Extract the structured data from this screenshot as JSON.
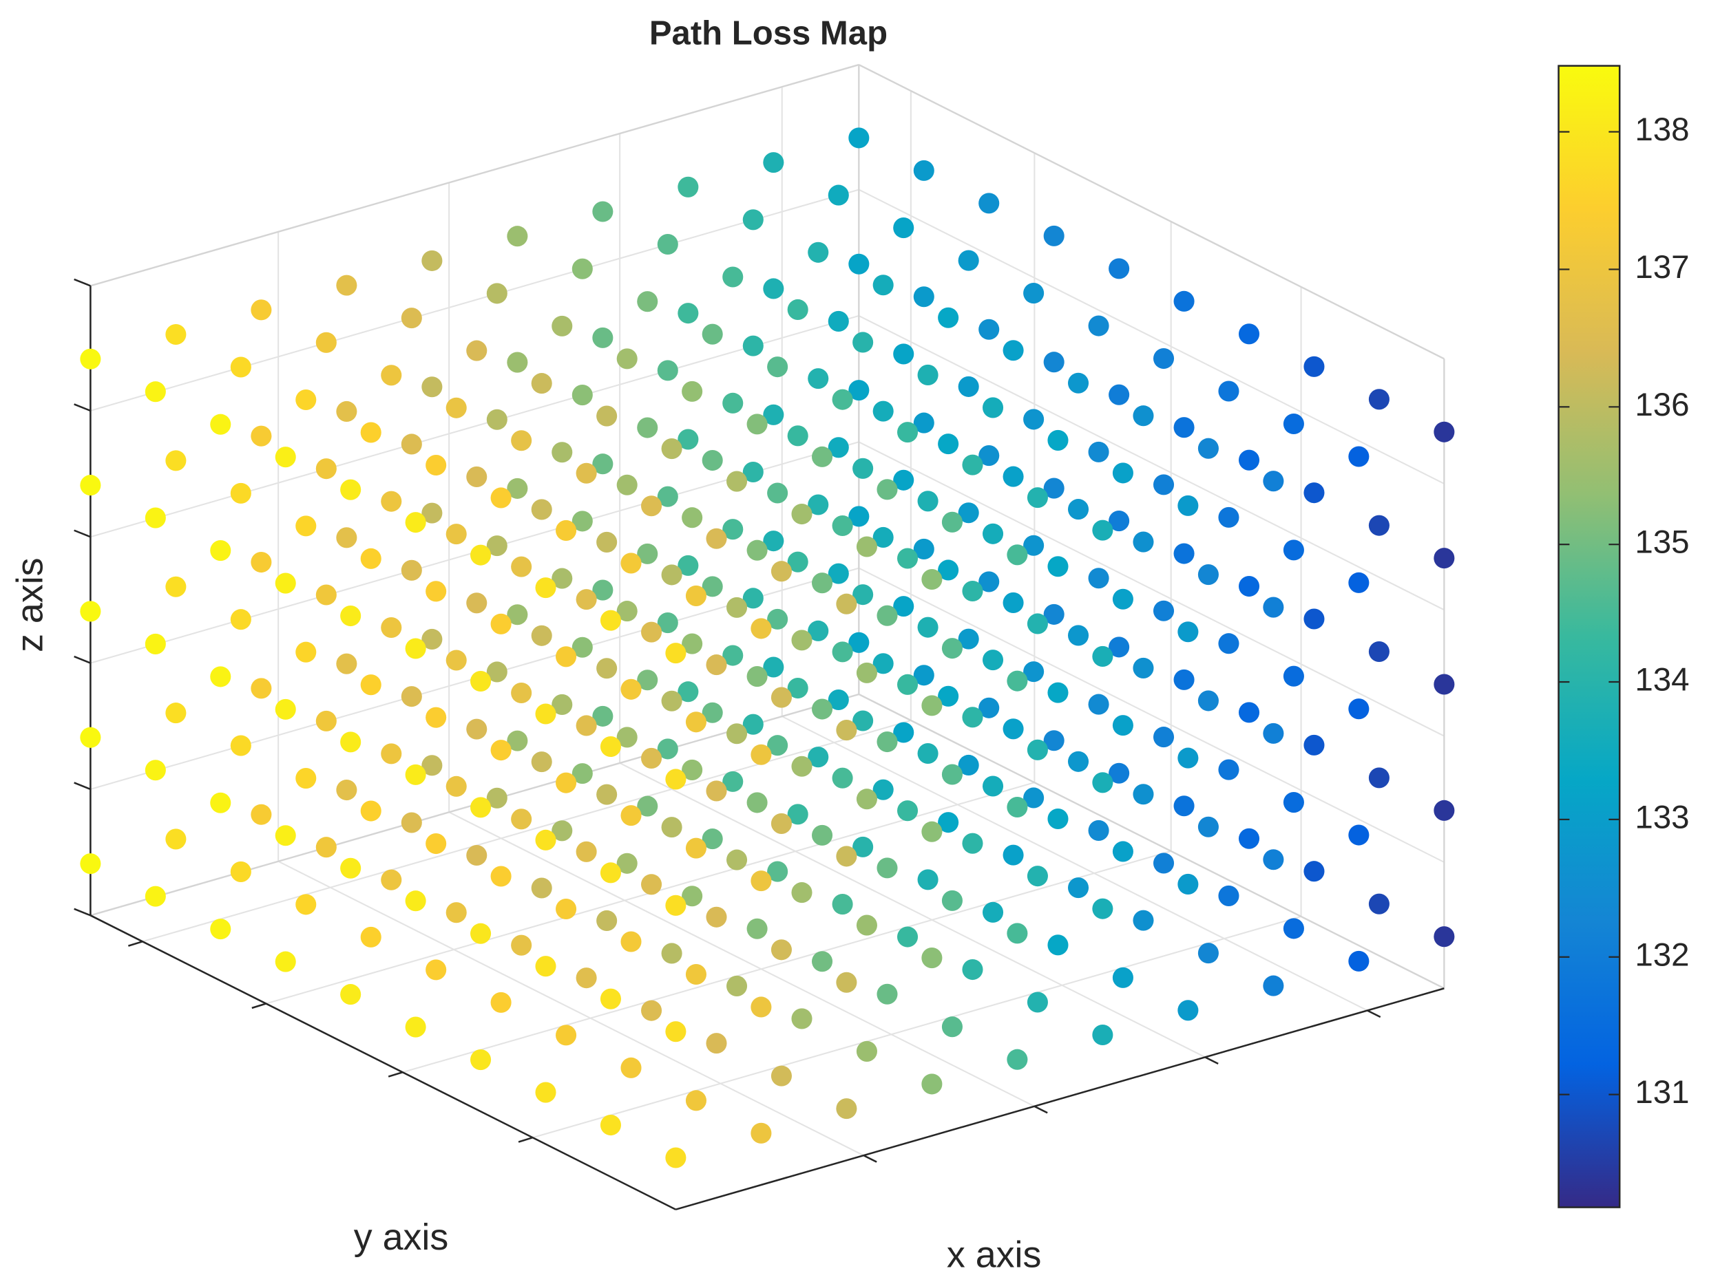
{
  "chart_data": {
    "type": "scatter3d",
    "title": "Path Loss Map",
    "x_label": "x axis",
    "y_label": "y axis",
    "z_label": "z axis",
    "x": [
      0,
      1,
      2,
      3,
      4,
      5,
      6,
      7,
      8,
      9
    ],
    "y": [
      0,
      1,
      2,
      3,
      4,
      5,
      6,
      7,
      8,
      9
    ],
    "z": [
      0,
      1,
      2,
      3,
      4
    ],
    "xlim": [
      0,
      9
    ],
    "ylim": [
      0,
      9
    ],
    "zlim": [
      -0.41,
      4.58
    ],
    "xticks": [
      2.2,
      4.2,
      6.2,
      8.1
    ],
    "yticks": [
      2.2,
      4.2,
      6.3,
      8.2
    ],
    "zticks": [
      -0.41,
      0.59,
      1.59,
      2.59,
      3.59,
      4.58
    ],
    "grid": true,
    "colormap": [
      "#352a87",
      "#0363e1",
      "#1485d4",
      "#06a7c6",
      "#38b99e",
      "#92bf73",
      "#d9ba56",
      "#fcce2e",
      "#f9fb0e"
    ],
    "clim": [
      130.18,
      138.48
    ],
    "cticks": [
      131,
      132,
      133,
      134,
      135,
      136,
      137,
      138
    ],
    "values": [
      [
        [
          137.8,
          137.0,
          136.2,
          135.3,
          134.5,
          133.7,
          132.9,
          132.1,
          131.2,
          130.4
        ],
        [
          137.9,
          137.1,
          136.3,
          135.5,
          134.7,
          133.9,
          133.1,
          132.3,
          131.5,
          130.7
        ],
        [
          137.9,
          137.2,
          136.4,
          135.6,
          134.9,
          134.1,
          133.3,
          132.6,
          131.8,
          131.0
        ],
        [
          138.0,
          137.3,
          136.5,
          135.8,
          135.0,
          134.3,
          133.6,
          132.8,
          132.1,
          131.4
        ],
        [
          138.1,
          137.4,
          136.6,
          135.9,
          135.2,
          134.5,
          133.8,
          133.1,
          132.4,
          131.7
        ],
        [
          138.1,
          137.4,
          136.8,
          136.1,
          135.4,
          134.7,
          134.0,
          133.3,
          132.7,
          132.0
        ],
        [
          138.2,
          137.5,
          136.9,
          136.2,
          135.6,
          134.9,
          134.3,
          133.6,
          132.9,
          132.3
        ],
        [
          138.3,
          137.6,
          137.0,
          136.4,
          135.7,
          135.1,
          134.5,
          133.9,
          133.2,
          132.6
        ],
        [
          138.3,
          137.7,
          137.1,
          136.5,
          135.9,
          135.3,
          134.7,
          134.1,
          133.5,
          132.9
        ],
        [
          138.4,
          137.8,
          137.3,
          136.7,
          136.1,
          135.5,
          134.9,
          134.4,
          133.8,
          133.2
        ]
      ],
      [
        [
          137.8,
          137.0,
          136.2,
          135.3,
          134.5,
          133.7,
          132.9,
          132.1,
          131.2,
          130.4
        ],
        [
          137.9,
          137.1,
          136.3,
          135.5,
          134.7,
          133.9,
          133.1,
          132.3,
          131.5,
          130.7
        ],
        [
          137.9,
          137.2,
          136.4,
          135.6,
          134.9,
          134.1,
          133.3,
          132.6,
          131.8,
          131.0
        ],
        [
          138.0,
          137.3,
          136.5,
          135.8,
          135.0,
          134.3,
          133.6,
          132.8,
          132.1,
          131.4
        ],
        [
          138.1,
          137.4,
          136.6,
          135.9,
          135.2,
          134.5,
          133.8,
          133.1,
          132.4,
          131.7
        ],
        [
          138.1,
          137.4,
          136.8,
          136.1,
          135.4,
          134.7,
          134.0,
          133.3,
          132.7,
          132.0
        ],
        [
          138.2,
          137.5,
          136.9,
          136.2,
          135.6,
          134.9,
          134.3,
          133.6,
          132.9,
          132.3
        ],
        [
          138.3,
          137.6,
          137.0,
          136.4,
          135.7,
          135.1,
          134.5,
          133.9,
          133.2,
          132.6
        ],
        [
          138.3,
          137.7,
          137.1,
          136.5,
          135.9,
          135.3,
          134.7,
          134.1,
          133.5,
          132.9
        ],
        [
          138.4,
          137.8,
          137.3,
          136.7,
          136.1,
          135.5,
          134.9,
          134.4,
          133.8,
          133.2
        ]
      ],
      [
        [
          137.8,
          137.0,
          136.2,
          135.3,
          134.5,
          133.7,
          132.9,
          132.1,
          131.2,
          130.4
        ],
        [
          137.9,
          137.1,
          136.3,
          135.5,
          134.7,
          133.9,
          133.1,
          132.3,
          131.5,
          130.7
        ],
        [
          137.9,
          137.2,
          136.4,
          135.6,
          134.9,
          134.1,
          133.3,
          132.6,
          131.8,
          131.0
        ],
        [
          138.0,
          137.3,
          136.5,
          135.8,
          135.0,
          134.3,
          133.6,
          132.8,
          132.1,
          131.4
        ],
        [
          138.1,
          137.4,
          136.6,
          135.9,
          135.2,
          134.5,
          133.8,
          133.1,
          132.4,
          131.7
        ],
        [
          138.1,
          137.4,
          136.8,
          136.1,
          135.4,
          134.7,
          134.0,
          133.3,
          132.7,
          132.0
        ],
        [
          138.2,
          137.5,
          136.9,
          136.2,
          135.6,
          134.9,
          134.3,
          133.6,
          132.9,
          132.3
        ],
        [
          138.3,
          137.6,
          137.0,
          136.4,
          135.7,
          135.1,
          134.5,
          133.9,
          133.2,
          132.6
        ],
        [
          138.3,
          137.7,
          137.1,
          136.5,
          135.9,
          135.3,
          134.7,
          134.1,
          133.5,
          132.9
        ],
        [
          138.4,
          137.8,
          137.3,
          136.7,
          136.1,
          135.5,
          134.9,
          134.4,
          133.8,
          133.2
        ]
      ],
      [
        [
          137.8,
          137.0,
          136.2,
          135.3,
          134.5,
          133.7,
          132.9,
          132.1,
          131.2,
          130.4
        ],
        [
          137.9,
          137.1,
          136.3,
          135.5,
          134.7,
          133.9,
          133.1,
          132.3,
          131.5,
          130.7
        ],
        [
          137.9,
          137.2,
          136.4,
          135.6,
          134.9,
          134.1,
          133.3,
          132.6,
          131.8,
          131.0
        ],
        [
          138.0,
          137.3,
          136.5,
          135.8,
          135.0,
          134.3,
          133.6,
          132.8,
          132.1,
          131.4
        ],
        [
          138.1,
          137.4,
          136.6,
          135.9,
          135.2,
          134.5,
          133.8,
          133.1,
          132.4,
          131.7
        ],
        [
          138.1,
          137.4,
          136.8,
          136.1,
          135.4,
          134.7,
          134.0,
          133.3,
          132.7,
          132.0
        ],
        [
          138.2,
          137.5,
          136.9,
          136.2,
          135.6,
          134.9,
          134.3,
          133.6,
          132.9,
          132.3
        ],
        [
          138.3,
          137.6,
          137.0,
          136.4,
          135.7,
          135.1,
          134.5,
          133.9,
          133.2,
          132.6
        ],
        [
          138.3,
          137.7,
          137.1,
          136.5,
          135.9,
          135.3,
          134.7,
          134.1,
          133.5,
          132.9
        ],
        [
          138.4,
          137.8,
          137.3,
          136.7,
          136.1,
          135.5,
          134.9,
          134.4,
          133.8,
          133.2
        ]
      ],
      [
        [
          137.8,
          137.0,
          136.2,
          135.3,
          134.5,
          133.7,
          132.9,
          132.1,
          131.2,
          130.4
        ],
        [
          137.9,
          137.1,
          136.3,
          135.5,
          134.7,
          133.9,
          133.1,
          132.3,
          131.5,
          130.7
        ],
        [
          137.9,
          137.2,
          136.4,
          135.6,
          134.9,
          134.1,
          133.3,
          132.6,
          131.8,
          131.0
        ],
        [
          138.0,
          137.3,
          136.5,
          135.8,
          135.0,
          134.3,
          133.6,
          132.8,
          132.1,
          131.4
        ],
        [
          138.1,
          137.4,
          136.6,
          135.9,
          135.2,
          134.5,
          133.8,
          133.1,
          132.4,
          131.7
        ],
        [
          138.1,
          137.4,
          136.8,
          136.1,
          135.4,
          134.7,
          134.0,
          133.3,
          132.7,
          132.0
        ],
        [
          138.2,
          137.5,
          136.9,
          136.2,
          135.6,
          134.9,
          134.3,
          133.6,
          132.9,
          132.3
        ],
        [
          138.3,
          137.6,
          137.0,
          136.4,
          135.7,
          135.1,
          134.5,
          133.9,
          133.2,
          132.6
        ],
        [
          138.3,
          137.7,
          137.1,
          136.5,
          135.9,
          135.3,
          134.7,
          134.1,
          133.5,
          132.9
        ],
        [
          138.4,
          137.8,
          137.3,
          136.7,
          136.1,
          135.5,
          134.9,
          134.4,
          133.8,
          133.2
        ]
      ]
    ]
  }
}
